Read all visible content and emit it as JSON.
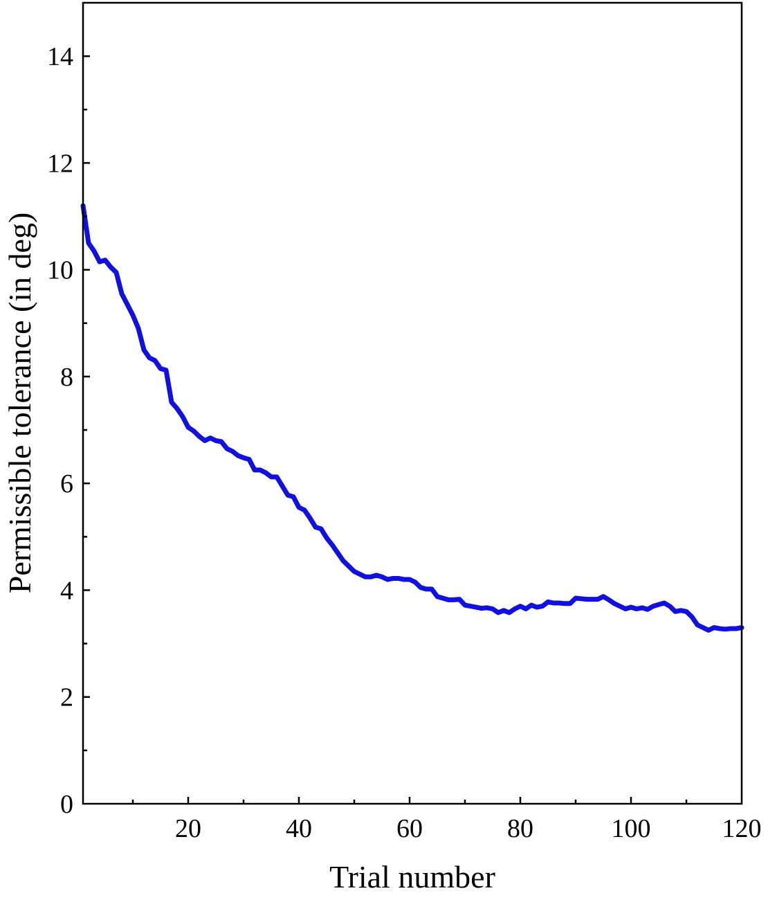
{
  "chart_data": {
    "type": "line",
    "title": "",
    "xlabel": "Trial number",
    "ylabel": "Permissible tolerance (in deg)",
    "xlim": [
      1,
      120
    ],
    "ylim": [
      0,
      15
    ],
    "x_ticks": [
      20,
      40,
      60,
      80,
      100,
      120
    ],
    "y_ticks": [
      0,
      2,
      4,
      6,
      8,
      10,
      12,
      14
    ],
    "x_tick_labels": [
      "20",
      "40",
      "60",
      "80",
      "100",
      "120"
    ],
    "y_tick_labels": [
      "0",
      "2",
      "4",
      "6",
      "8",
      "10",
      "12",
      "14"
    ],
    "grid": false,
    "legend": "none",
    "series": [
      {
        "color": "#1010e0",
        "x": [
          1,
          2,
          3,
          4,
          5,
          6,
          7,
          8,
          9,
          10,
          11,
          12,
          13,
          14,
          15,
          16,
          17,
          18,
          19,
          20,
          21,
          22,
          23,
          24,
          25,
          26,
          27,
          28,
          29,
          30,
          31,
          32,
          33,
          34,
          35,
          36,
          37,
          38,
          39,
          40,
          41,
          42,
          43,
          44,
          45,
          46,
          47,
          48,
          49,
          50,
          51,
          52,
          53,
          54,
          55,
          56,
          57,
          58,
          59,
          60,
          61,
          62,
          63,
          64,
          65,
          66,
          67,
          68,
          69,
          70,
          71,
          72,
          73,
          74,
          75,
          76,
          77,
          78,
          79,
          80,
          81,
          82,
          83,
          84,
          85,
          86,
          87,
          88,
          89,
          90,
          91,
          92,
          93,
          94,
          95,
          96,
          97,
          98,
          99,
          100,
          101,
          102,
          103,
          104,
          105,
          106,
          107,
          108,
          109,
          110,
          111,
          112,
          113,
          114,
          115,
          116,
          117,
          118,
          119,
          120
        ],
        "y": [
          11.2,
          10.5,
          10.35,
          10.15,
          10.18,
          10.05,
          9.95,
          9.55,
          9.35,
          9.15,
          8.9,
          8.5,
          8.35,
          8.3,
          8.15,
          8.12,
          7.52,
          7.4,
          7.25,
          7.05,
          6.98,
          6.88,
          6.8,
          6.85,
          6.8,
          6.78,
          6.65,
          6.6,
          6.52,
          6.48,
          6.45,
          6.25,
          6.25,
          6.2,
          6.12,
          6.12,
          5.95,
          5.78,
          5.75,
          5.55,
          5.5,
          5.35,
          5.18,
          5.15,
          4.98,
          4.85,
          4.7,
          4.55,
          4.45,
          4.35,
          4.3,
          4.25,
          4.25,
          4.28,
          4.25,
          4.2,
          4.22,
          4.22,
          4.2,
          4.2,
          4.15,
          4.05,
          4.02,
          4.02,
          3.88,
          3.85,
          3.82,
          3.82,
          3.83,
          3.72,
          3.7,
          3.68,
          3.66,
          3.67,
          3.65,
          3.58,
          3.62,
          3.58,
          3.65,
          3.7,
          3.65,
          3.72,
          3.68,
          3.7,
          3.78,
          3.76,
          3.76,
          3.75,
          3.75,
          3.85,
          3.84,
          3.83,
          3.83,
          3.83,
          3.88,
          3.82,
          3.75,
          3.7,
          3.65,
          3.68,
          3.65,
          3.67,
          3.64,
          3.7,
          3.73,
          3.76,
          3.7,
          3.6,
          3.62,
          3.6,
          3.5,
          3.35,
          3.3,
          3.25,
          3.3,
          3.28,
          3.27,
          3.28,
          3.28,
          3.3
        ]
      }
    ]
  }
}
